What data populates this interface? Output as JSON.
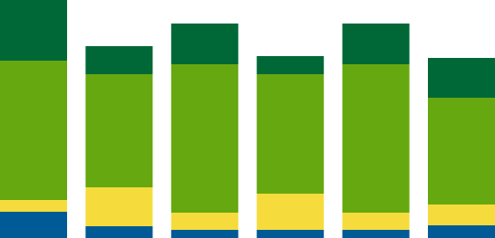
{
  "chart_data": {
    "type": "stacked_bar",
    "categories": [
      null,
      null,
      null,
      null,
      null,
      null
    ],
    "ylim": [
      0,
      263
    ],
    "series": [
      {
        "color": "#005a96",
        "values": [
          29,
          13,
          9,
          9,
          9,
          14
        ]
      },
      {
        "color": "#f5dc3c",
        "values": [
          13,
          43,
          19,
          40,
          19,
          23
        ]
      },
      {
        "color": "#66a80f",
        "values": [
          154,
          125,
          164,
          132,
          164,
          118
        ]
      },
      {
        "color": "#006837",
        "values": [
          67,
          31,
          45,
          20,
          45,
          44
        ]
      }
    ]
  }
}
